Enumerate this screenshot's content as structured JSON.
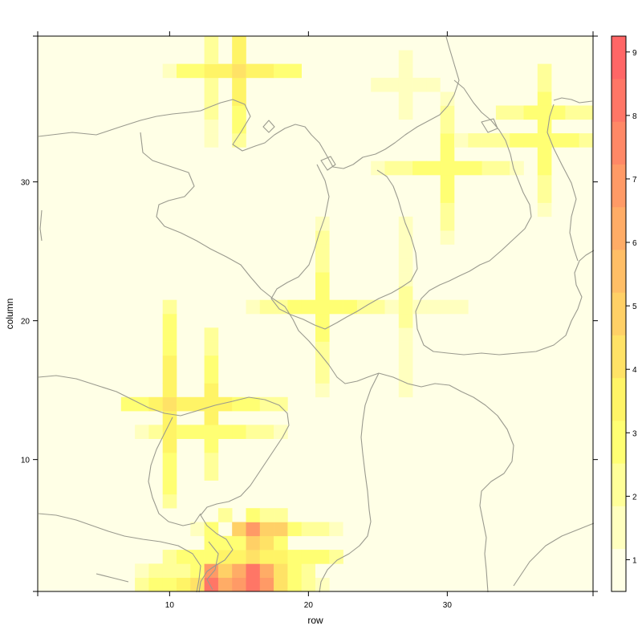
{
  "chart_data": {
    "type": "heatmap",
    "xlabel": "row",
    "ylabel": "column",
    "xlim": [
      0.5,
      40.5
    ],
    "ylim": [
      0.5,
      40.5
    ],
    "x_ticks": [
      10,
      20,
      30
    ],
    "y_ticks": [
      10,
      20,
      30
    ],
    "colorbar": {
      "min": 0.5,
      "max": 9.25,
      "tick_values": [
        1,
        2,
        3,
        4,
        5,
        6,
        7,
        8,
        9
      ],
      "tick_labels": [
        "1",
        "2",
        "3",
        "4",
        "5",
        "6",
        "7",
        "8",
        "9"
      ],
      "palette": [
        "#FFFFE6",
        "#FFFFBF",
        "#FFFF99",
        "#FFFF73",
        "#FFF466",
        "#FFE266",
        "#FFD066",
        "#FFBE66",
        "#FFAC66",
        "#FF9A66",
        "#FF8866",
        "#FF7666",
        "#FF6666"
      ]
    },
    "crosses": [
      {
        "center": [
          12.5,
          38
        ],
        "hx": 3,
        "vy": 5,
        "level": 2.5
      },
      {
        "center": [
          15,
          38
        ],
        "hx": 4,
        "vy": 5,
        "level": 4
      },
      {
        "center": [
          27,
          36.5
        ],
        "hx": 4,
        "vy": 4,
        "level": 1.5
      },
      {
        "center": [
          30,
          31
        ],
        "hx": 5,
        "vy": 5,
        "level": 3
      },
      {
        "center": [
          37,
          33
        ],
        "hx": 6,
        "vy": 5,
        "level": 3
      },
      {
        "center": [
          37,
          35
        ],
        "hx": 3,
        "vy": 3,
        "level": 3
      },
      {
        "center": [
          21,
          21
        ],
        "hx": 5,
        "vy": 6,
        "level": 3
      },
      {
        "center": [
          27,
          21
        ],
        "hx": 4,
        "vy": 6,
        "level": 2
      },
      {
        "center": [
          10,
          14
        ],
        "hx": 3,
        "vy": 7,
        "level": 4
      },
      {
        "center": [
          13,
          14
        ],
        "hx": 5,
        "vy": 5,
        "level": 3.5
      },
      {
        "center": [
          13,
          12
        ],
        "hx": 5,
        "vy": 3,
        "level": 3
      },
      {
        "center": [
          25.5,
          12
        ],
        "hx": 1,
        "vy": 1,
        "level": 0.8
      },
      {
        "center": [
          16,
          3
        ],
        "hx": 6,
        "vy": 3,
        "level": 4
      },
      {
        "center": [
          13,
          1
        ],
        "hx": 5,
        "vy": 3,
        "level": 4
      }
    ],
    "blobs": [
      {
        "cells": [
          [
            16,
            5,
            7
          ],
          [
            17,
            5,
            5
          ],
          [
            15,
            5,
            5
          ],
          [
            18,
            5,
            5
          ],
          [
            16,
            4,
            5
          ],
          [
            16,
            6,
            3
          ],
          [
            14,
            4,
            3
          ],
          [
            18,
            4,
            3
          ],
          [
            19,
            5,
            3
          ],
          [
            20,
            5,
            2.5
          ],
          [
            21,
            5,
            2
          ],
          [
            22,
            5,
            1.5
          ],
          [
            23,
            5,
            1
          ],
          [
            24,
            5,
            1
          ],
          [
            11,
            5,
            1
          ],
          [
            12,
            5,
            1.5
          ],
          [
            13,
            5,
            3
          ],
          [
            14,
            6,
            2
          ],
          [
            17,
            6,
            2
          ],
          [
            18,
            6,
            2
          ]
        ]
      },
      {
        "cells": [
          [
            13,
            1,
            8.5
          ],
          [
            13,
            2,
            7
          ],
          [
            14,
            1,
            6
          ],
          [
            14,
            2,
            5
          ],
          [
            15,
            1,
            7
          ],
          [
            16,
            1,
            8
          ],
          [
            16,
            2,
            8
          ],
          [
            17,
            1,
            7
          ],
          [
            17,
            2,
            6
          ],
          [
            15,
            2,
            6
          ],
          [
            18,
            1,
            4
          ],
          [
            18,
            2,
            4
          ],
          [
            12,
            1,
            4
          ],
          [
            12,
            2,
            3
          ],
          [
            11,
            1,
            3
          ],
          [
            11,
            2,
            2.5
          ],
          [
            10,
            2,
            2
          ],
          [
            9,
            2,
            2
          ],
          [
            8,
            2,
            1.5
          ],
          [
            19,
            1,
            3
          ],
          [
            19,
            2,
            3
          ],
          [
            20,
            1,
            2
          ],
          [
            20,
            2,
            2
          ],
          [
            21,
            1,
            1.5
          ],
          [
            21,
            2,
            1
          ],
          [
            13,
            3,
            3
          ],
          [
            14,
            3,
            2
          ],
          [
            15,
            3,
            2
          ],
          [
            16,
            3,
            4
          ],
          [
            17,
            3,
            3
          ],
          [
            12,
            3,
            2
          ],
          [
            18,
            3,
            2
          ],
          [
            15,
            4,
            3
          ],
          [
            17,
            4,
            4
          ]
        ]
      }
    ]
  }
}
